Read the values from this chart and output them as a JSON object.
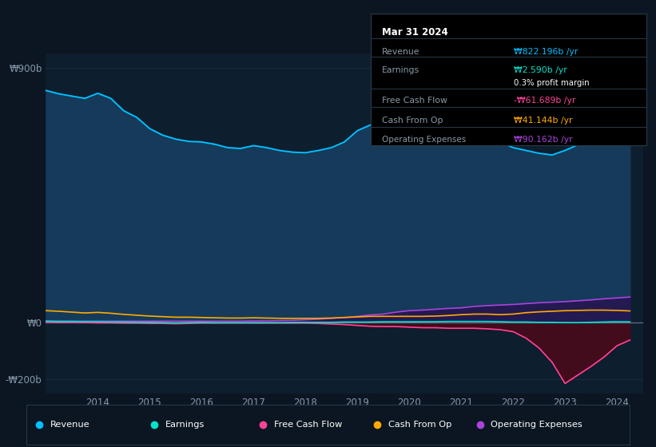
{
  "bg_color": "#0b1622",
  "plot_bg_color": "#0d1e2e",
  "grid_color": "#1a3040",
  "years": [
    2013.0,
    2013.25,
    2013.5,
    2013.75,
    2014.0,
    2014.25,
    2014.5,
    2014.75,
    2015.0,
    2015.25,
    2015.5,
    2015.75,
    2016.0,
    2016.25,
    2016.5,
    2016.75,
    2017.0,
    2017.25,
    2017.5,
    2017.75,
    2018.0,
    2018.25,
    2018.5,
    2018.75,
    2019.0,
    2019.25,
    2019.5,
    2019.75,
    2020.0,
    2020.25,
    2020.5,
    2020.75,
    2021.0,
    2021.25,
    2021.5,
    2021.75,
    2022.0,
    2022.25,
    2022.5,
    2022.75,
    2023.0,
    2023.25,
    2023.5,
    2023.75,
    2024.0,
    2024.25
  ],
  "revenue": [
    820,
    808,
    800,
    792,
    810,
    792,
    748,
    725,
    685,
    662,
    648,
    640,
    638,
    630,
    618,
    615,
    625,
    618,
    608,
    602,
    600,
    608,
    618,
    638,
    678,
    698,
    692,
    672,
    648,
    638,
    628,
    638,
    658,
    660,
    648,
    638,
    618,
    608,
    598,
    592,
    608,
    628,
    668,
    728,
    778,
    822
  ],
  "earnings": [
    5,
    4,
    4,
    3,
    3,
    2,
    2,
    1,
    1,
    0,
    -1,
    0,
    1,
    0,
    0,
    0,
    0,
    0,
    0,
    1,
    1,
    1,
    1,
    2,
    2,
    2,
    3,
    3,
    3,
    3,
    3,
    4,
    4,
    4,
    4,
    3,
    2,
    2,
    1,
    1,
    0,
    0,
    1,
    2,
    3,
    2.59
  ],
  "free_cash_flow": [
    2,
    1,
    1,
    0,
    -1,
    -1,
    -2,
    -2,
    -3,
    -3,
    -4,
    -3,
    -2,
    -2,
    -2,
    -2,
    -2,
    -2,
    -2,
    -2,
    -2,
    -3,
    -5,
    -7,
    -10,
    -13,
    -14,
    -14,
    -16,
    -18,
    -18,
    -20,
    -20,
    -20,
    -22,
    -25,
    -32,
    -55,
    -90,
    -140,
    -215,
    -185,
    -155,
    -122,
    -82,
    -61.689
  ],
  "cash_from_op": [
    42,
    40,
    37,
    34,
    36,
    33,
    29,
    26,
    23,
    21,
    19,
    19,
    18,
    17,
    16,
    16,
    17,
    16,
    15,
    15,
    15,
    15,
    16,
    18,
    20,
    22,
    22,
    22,
    22,
    22,
    23,
    25,
    28,
    30,
    30,
    28,
    30,
    35,
    38,
    40,
    42,
    43,
    44,
    44,
    43,
    41.144
  ],
  "operating_expenses": [
    5,
    5,
    5,
    5,
    5,
    5,
    5,
    5,
    5,
    5,
    5,
    5,
    5,
    5,
    5,
    5,
    6,
    6,
    7,
    8,
    10,
    12,
    15,
    18,
    22,
    27,
    30,
    37,
    42,
    44,
    47,
    50,
    52,
    57,
    60,
    62,
    64,
    67,
    70,
    72,
    74,
    77,
    80,
    84,
    87,
    90.162
  ],
  "revenue_color": "#00bfff",
  "revenue_fill": "#163a5a",
  "earnings_color": "#00e5cc",
  "fcf_color": "#ff4499",
  "fcf_fill": "#4a0a1a",
  "cash_op_color": "#ffaa00",
  "opex_color": "#aa44dd",
  "opex_fill": "#2a1050",
  "ylim_top": 950,
  "ylim_bottom": -250,
  "xlim_left": 2013.0,
  "xlim_right": 2024.5,
  "yticks": [
    -200,
    0,
    900
  ],
  "ytick_labels": [
    "-₩200b",
    "₩0",
    "₩900b"
  ],
  "xtick_years": [
    2014,
    2015,
    2016,
    2017,
    2018,
    2019,
    2020,
    2021,
    2022,
    2023,
    2024
  ],
  "zero_line_color": "#607080",
  "info_box": {
    "date": "Mar 31 2024",
    "revenue_label": "Revenue",
    "revenue_val": "₩822.196b /yr",
    "earnings_label": "Earnings",
    "earnings_val": "₩2.590b /yr",
    "profit_margin": "0.3% profit margin",
    "fcf_label": "Free Cash Flow",
    "fcf_val": "-₩61.689b /yr",
    "cash_op_label": "Cash From Op",
    "cash_op_val": "₩41.144b /yr",
    "opex_label": "Operating Expenses",
    "opex_val": "₩90.162b /yr"
  }
}
